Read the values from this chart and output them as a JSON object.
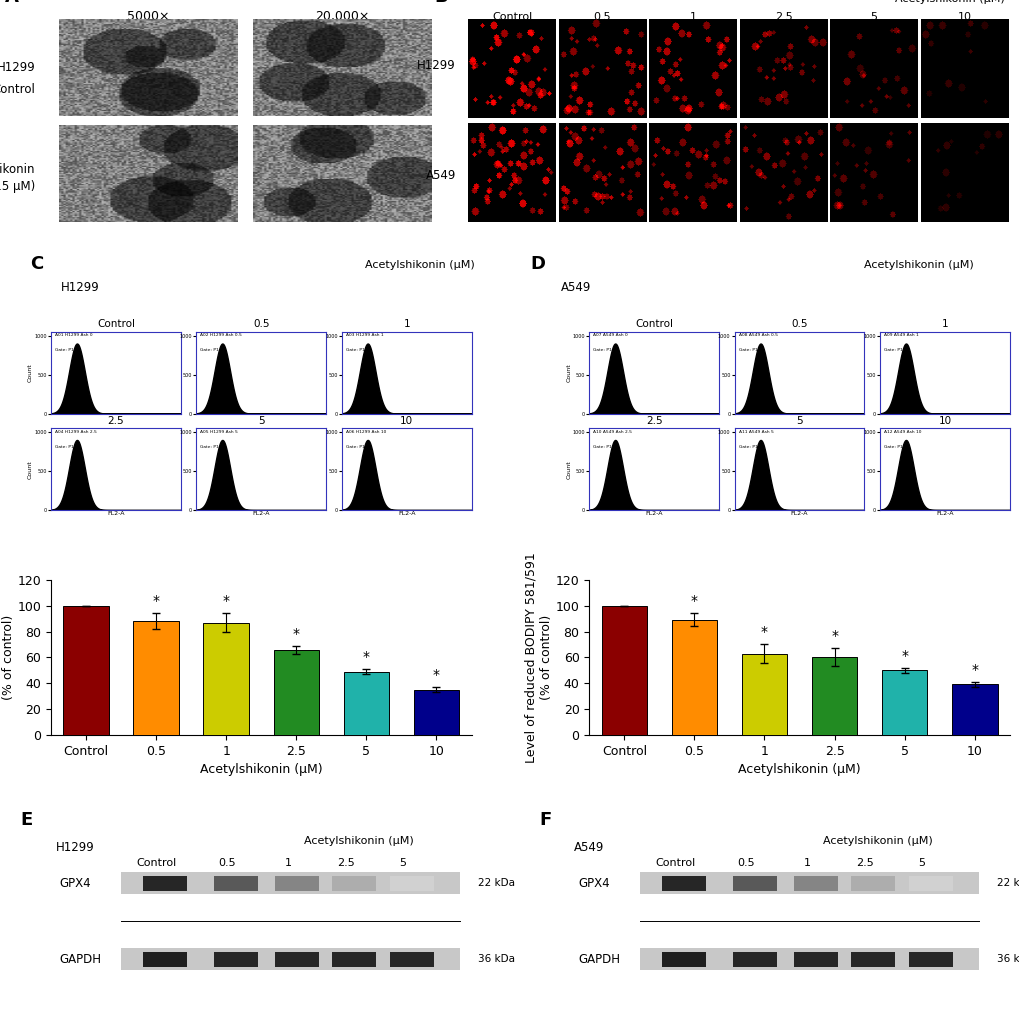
{
  "panel_label_fontsize": 13,
  "panel_label_fontweight": "bold",
  "C_bar_values": [
    100,
    88,
    87,
    66,
    49,
    35
  ],
  "C_bar_errors": [
    0,
    6,
    7,
    3,
    2,
    2
  ],
  "D_bar_values": [
    100,
    89,
    63,
    60,
    50,
    39
  ],
  "D_bar_errors": [
    0,
    5,
    7,
    7,
    2,
    2
  ],
  "bar_colors": [
    "#8B0000",
    "#FF8C00",
    "#CCCC00",
    "#228B22",
    "#20B2AA",
    "#00008B"
  ],
  "x_labels": [
    "Control",
    "0.5",
    "1",
    "2.5",
    "5",
    "10"
  ],
  "xlabel": "Acetylshikonin (μM)",
  "ylabel": "Level of reduced BODIPY 581/591\n(% of control)",
  "ylim": [
    0,
    120
  ],
  "yticks": [
    0,
    20,
    40,
    60,
    80,
    100,
    120
  ],
  "asterisk_C": [
    1,
    2,
    3,
    4,
    5
  ],
  "asterisk_D": [
    1,
    2,
    3,
    4,
    5
  ],
  "bar_width": 0.65,
  "em_label_5000": "5000×",
  "em_label_20000": "20,000×",
  "fluor_conc_labels": [
    "Control",
    "0.5",
    "1",
    "2.5",
    "5",
    "10"
  ],
  "fluor_acetyl_label": "Acetylshikonin (μM)",
  "wb_acetyl_label": "Acetylshikonin (μM)",
  "wb_control_label": "Control",
  "wb_conc_labels": [
    "0.5",
    "1",
    "2.5",
    "5"
  ],
  "wb_protein1": "GPX4",
  "wb_protein2": "GAPDH",
  "wb_size1": "22 kDa",
  "wb_size2": "36 kDa",
  "background_color": "#FFFFFF",
  "tick_fontsize": 9,
  "label_fontsize": 9
}
